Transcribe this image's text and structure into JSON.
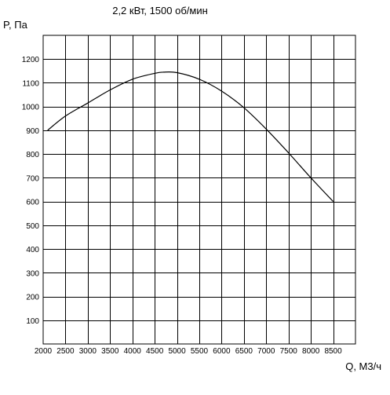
{
  "chart_data": {
    "type": "line",
    "title": "2,2 кВт, 1500 об/мин",
    "xlabel": "Q, М3/ч",
    "ylabel": "P, Па",
    "xlim": [
      2000,
      9000
    ],
    "ylim": [
      0,
      1300
    ],
    "x_ticks": [
      2000,
      2500,
      3000,
      3500,
      4000,
      4500,
      5000,
      5500,
      6000,
      6500,
      7000,
      7500,
      8000,
      8500
    ],
    "y_ticks": [
      100,
      200,
      300,
      400,
      500,
      600,
      700,
      800,
      900,
      1000,
      1100,
      1200
    ],
    "grid": true,
    "series": [
      {
        "color": "#000000",
        "x": [
          2100,
          2500,
          3000,
          3500,
          4000,
          4500,
          4700,
          5000,
          5500,
          6000,
          6500,
          7000,
          7500,
          8000,
          8500
        ],
        "y": [
          900,
          960,
          1015,
          1070,
          1115,
          1140,
          1145,
          1143,
          1115,
          1065,
          995,
          905,
          805,
          700,
          600
        ]
      }
    ]
  }
}
